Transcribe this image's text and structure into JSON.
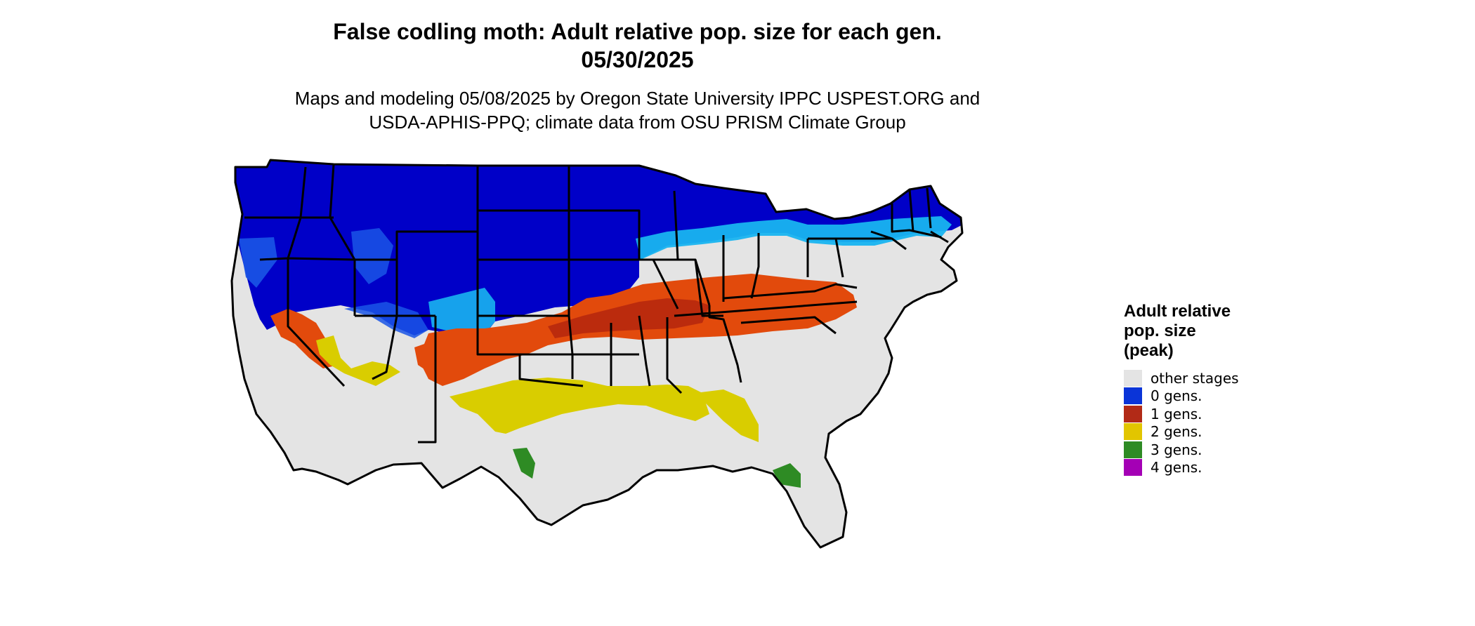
{
  "title": {
    "line1": "False codling moth: Adult relative pop. size for each gen.",
    "line2": "05/30/2025"
  },
  "subtitle": {
    "line1": "Maps and modeling 05/08/2025 by Oregon State University IPPC USPEST.ORG and",
    "line2": "USDA-APHIS-PPQ; climate data from OSU PRISM Climate Group"
  },
  "legend": {
    "title_line1": "Adult relative",
    "title_line2": "pop. size",
    "title_line3": "(peak)",
    "items": [
      {
        "label": "other stages",
        "color": "#e4e4e4"
      },
      {
        "label": "0 gens.",
        "color": "#0a34d8"
      },
      {
        "label": "1 gens.",
        "color": "#b22a17"
      },
      {
        "label": "2 gens.",
        "color": "#e2c500"
      },
      {
        "label": "3 gens.",
        "color": "#2e8b24"
      },
      {
        "label": "4 gens.",
        "color": "#a400b5"
      }
    ]
  },
  "map_colors": {
    "background": "#e4e4e4",
    "zero_gens_dark": "#0000c8",
    "zero_gens_mid": "#1a55e6",
    "zero_gens_light": "#18b4f0",
    "one_gen_dark": "#b4260e",
    "one_gen_light": "#e24a0c",
    "two_gens": "#d9cd00",
    "three_gens": "#2e8b24",
    "borders": "#000000"
  }
}
